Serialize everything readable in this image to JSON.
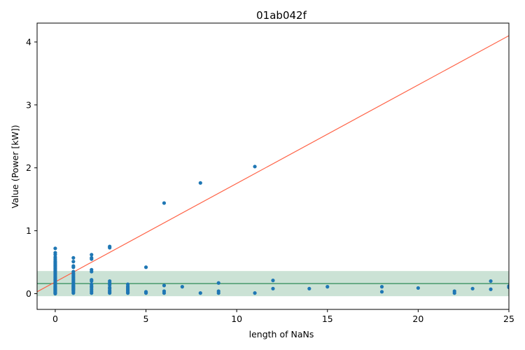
{
  "chart_data": {
    "type": "scatter",
    "title": "01ab042f",
    "xlabel": "length of NaNs",
    "ylabel": "Value (Power [kW])",
    "xlim": [
      -1,
      25
    ],
    "ylim": [
      -0.25,
      4.3
    ],
    "xticks": [
      0,
      5,
      10,
      15,
      20,
      25
    ],
    "yticks": [
      0,
      1,
      2,
      3,
      4
    ],
    "grid": false,
    "colors": {
      "points": "#1f77b4",
      "fit_line": "#ff6347",
      "band_fill": "#2e8b57",
      "band_line": "#2e8b57",
      "frame": "#000000"
    },
    "scatter": {
      "x": [
        0,
        0,
        0,
        0,
        0,
        0,
        0,
        0,
        0,
        0,
        0,
        0,
        0,
        0,
        0,
        0,
        0,
        0,
        0,
        0,
        0,
        0,
        0,
        0,
        0,
        0,
        0,
        0,
        0,
        0,
        0,
        0,
        0,
        0,
        0,
        0,
        0,
        0,
        1,
        1,
        1,
        1,
        1,
        1,
        1,
        1,
        1,
        1,
        1,
        1,
        1,
        1,
        1,
        1,
        1,
        1,
        1,
        1,
        1,
        1,
        1,
        1,
        1,
        1,
        2,
        2,
        2,
        2,
        2,
        2,
        2,
        2,
        2,
        2,
        2,
        2,
        2,
        3,
        3,
        3,
        3,
        3,
        3,
        3,
        3,
        3,
        3,
        4,
        4,
        4,
        4,
        4,
        4,
        4,
        4,
        5,
        5,
        5,
        5,
        6,
        6,
        6,
        6,
        7,
        8,
        8,
        9,
        9,
        9,
        11,
        11,
        12,
        12,
        14,
        15,
        18,
        18,
        20,
        22,
        22,
        23,
        24,
        24,
        25,
        25
      ],
      "y": [
        0.72,
        0.65,
        0.62,
        0.58,
        0.55,
        0.52,
        0.5,
        0.48,
        0.46,
        0.44,
        0.42,
        0.4,
        0.38,
        0.36,
        0.34,
        0.32,
        0.3,
        0.28,
        0.26,
        0.24,
        0.22,
        0.2,
        0.18,
        0.16,
        0.14,
        0.12,
        0.11,
        0.1,
        0.09,
        0.08,
        0.07,
        0.06,
        0.05,
        0.04,
        0.03,
        0.02,
        0.01,
        0.0,
        0.57,
        0.51,
        0.44,
        0.42,
        0.35,
        0.32,
        0.3,
        0.28,
        0.26,
        0.24,
        0.22,
        0.2,
        0.18,
        0.16,
        0.14,
        0.13,
        0.12,
        0.11,
        0.1,
        0.09,
        0.08,
        0.07,
        0.06,
        0.05,
        0.03,
        0.01,
        0.62,
        0.57,
        0.55,
        0.38,
        0.35,
        0.22,
        0.2,
        0.15,
        0.12,
        0.1,
        0.07,
        0.04,
        0.01,
        0.75,
        0.73,
        0.2,
        0.17,
        0.14,
        0.1,
        0.08,
        0.05,
        0.03,
        0.01,
        0.15,
        0.12,
        0.1,
        0.08,
        0.06,
        0.04,
        0.02,
        0.01,
        0.42,
        0.03,
        0.02,
        0.01,
        1.44,
        0.13,
        0.04,
        0.01,
        0.11,
        1.76,
        0.01,
        0.17,
        0.04,
        0.01,
        2.02,
        0.01,
        0.21,
        0.08,
        0.08,
        0.11,
        0.11,
        0.03,
        0.09,
        0.04,
        0.01,
        0.08,
        0.2,
        0.07,
        0.12,
        0.1
      ]
    },
    "fit_line": {
      "x": [
        -1,
        25
      ],
      "y": [
        0.03,
        4.1
      ]
    },
    "band": {
      "center": 0.16,
      "lower": -0.04,
      "upper": 0.36
    }
  }
}
